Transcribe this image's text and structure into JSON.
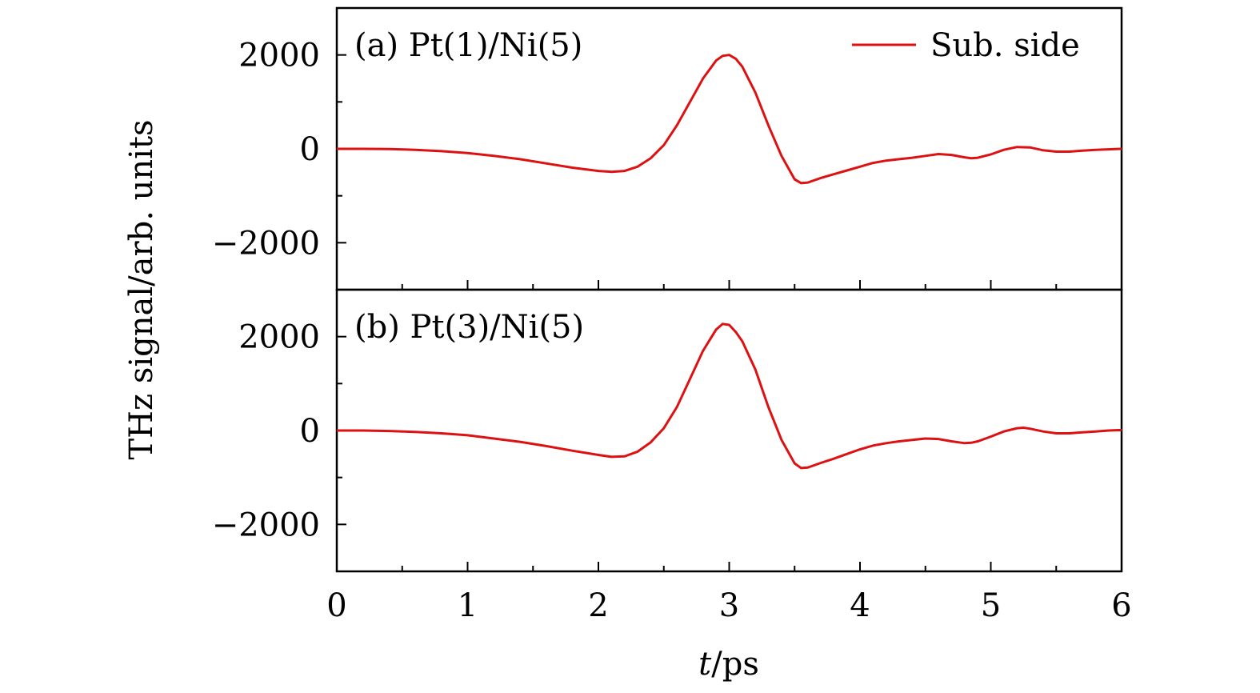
{
  "chart_data": [
    {
      "type": "line",
      "panel_label": "(a) Pt(1)/Ni(5)",
      "xlim": [
        0,
        6
      ],
      "ylim": [
        -3000,
        3000
      ],
      "yticks": [
        -2000,
        0,
        2000
      ],
      "ytick_labels": [
        "−2000",
        "0",
        "2000"
      ],
      "legend": {
        "position": "top-right",
        "entries": [
          "Sub. side"
        ]
      },
      "series": [
        {
          "name": "Sub. side",
          "color": "#dd1111",
          "x": [
            0,
            0.2,
            0.4,
            0.6,
            0.8,
            1.0,
            1.2,
            1.4,
            1.6,
            1.8,
            2.0,
            2.1,
            2.2,
            2.3,
            2.4,
            2.5,
            2.6,
            2.7,
            2.8,
            2.9,
            2.95,
            3.0,
            3.05,
            3.1,
            3.2,
            3.3,
            3.4,
            3.5,
            3.55,
            3.6,
            3.7,
            3.8,
            3.9,
            4.0,
            4.1,
            4.2,
            4.3,
            4.4,
            4.5,
            4.6,
            4.7,
            4.8,
            4.85,
            4.9,
            5.0,
            5.1,
            5.2,
            5.3,
            5.4,
            5.5,
            5.6,
            5.7,
            5.8,
            5.9,
            6.0
          ],
          "y": [
            0,
            0,
            -5,
            -20,
            -50,
            -90,
            -150,
            -220,
            -310,
            -400,
            -470,
            -490,
            -470,
            -380,
            -200,
            80,
            500,
            1000,
            1500,
            1880,
            1980,
            2000,
            1920,
            1750,
            1200,
            500,
            -150,
            -650,
            -730,
            -720,
            -620,
            -540,
            -460,
            -380,
            -300,
            -250,
            -220,
            -190,
            -150,
            -110,
            -130,
            -180,
            -200,
            -190,
            -120,
            -20,
            40,
            30,
            -30,
            -60,
            -60,
            -40,
            -20,
            -10,
            0
          ]
        }
      ]
    },
    {
      "type": "line",
      "panel_label": "(b) Pt(3)/Ni(5)",
      "xlim": [
        0,
        6
      ],
      "ylim": [
        -3000,
        3000
      ],
      "yticks": [
        -2000,
        0,
        2000
      ],
      "ytick_labels": [
        "−2000",
        "0",
        "2000"
      ],
      "xticks": [
        0,
        1,
        2,
        3,
        4,
        5,
        6
      ],
      "xtick_labels": [
        "0",
        "1",
        "2",
        "3",
        "4",
        "5",
        "6"
      ],
      "series": [
        {
          "name": "Sub. side",
          "color": "#dd1111",
          "x": [
            0,
            0.2,
            0.4,
            0.6,
            0.8,
            1.0,
            1.2,
            1.4,
            1.6,
            1.8,
            2.0,
            2.1,
            2.2,
            2.3,
            2.4,
            2.5,
            2.6,
            2.7,
            2.8,
            2.9,
            2.95,
            3.0,
            3.05,
            3.1,
            3.2,
            3.3,
            3.4,
            3.5,
            3.55,
            3.6,
            3.7,
            3.8,
            3.9,
            4.0,
            4.1,
            4.2,
            4.3,
            4.4,
            4.5,
            4.6,
            4.7,
            4.8,
            4.85,
            4.9,
            5.0,
            5.1,
            5.2,
            5.25,
            5.3,
            5.4,
            5.5,
            5.6,
            5.7,
            5.8,
            5.9,
            6.0
          ],
          "y": [
            0,
            0,
            -10,
            -30,
            -60,
            -100,
            -170,
            -240,
            -330,
            -430,
            -520,
            -560,
            -550,
            -450,
            -250,
            50,
            500,
            1100,
            1700,
            2150,
            2270,
            2250,
            2100,
            1900,
            1300,
            500,
            -200,
            -700,
            -800,
            -790,
            -690,
            -600,
            -500,
            -400,
            -320,
            -270,
            -230,
            -200,
            -170,
            -180,
            -230,
            -270,
            -260,
            -230,
            -130,
            -20,
            50,
            60,
            40,
            -20,
            -60,
            -60,
            -40,
            -20,
            0,
            10
          ]
        }
      ]
    }
  ],
  "xlabel": "t/ps",
  "ylabel": "THz signal/arb. units"
}
